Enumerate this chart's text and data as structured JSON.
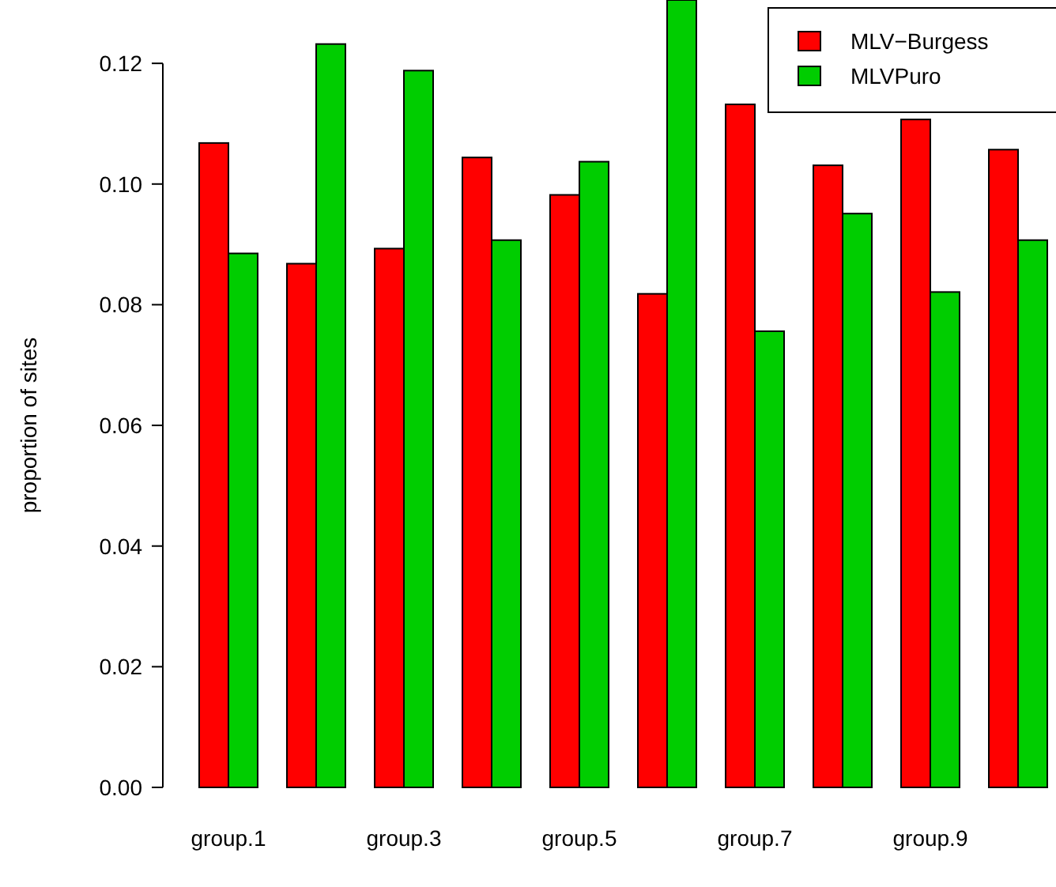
{
  "chart_data": {
    "type": "bar",
    "ylabel": "proportion of sites",
    "categories": [
      "group.1",
      null,
      "group.3",
      null,
      "group.5",
      null,
      "group.7",
      null,
      "group.9",
      null
    ],
    "series": [
      {
        "name": "MLV−Burgess",
        "color": "#ff0000",
        "values": [
          0.1068,
          0.0868,
          0.0893,
          0.1044,
          0.0982,
          0.0818,
          0.1132,
          0.1031,
          0.1107,
          0.1057
        ]
      },
      {
        "name": "MLVPuro",
        "color": "#00cd00",
        "values": [
          0.0885,
          0.1232,
          0.1188,
          0.0907,
          0.1037,
          0.1305,
          0.0756,
          0.0951,
          0.0821,
          0.0907
        ]
      }
    ],
    "ylim": [
      0,
      0.1305
    ],
    "yticks": [
      {
        "value": 0,
        "label": "0.00"
      },
      {
        "value": 0.02,
        "label": "0.02"
      },
      {
        "value": 0.04,
        "label": "0.04"
      },
      {
        "value": 0.06,
        "label": "0.06"
      },
      {
        "value": 0.08,
        "label": "0.08"
      },
      {
        "value": 0.1,
        "label": "0.10"
      },
      {
        "value": 0.12,
        "label": "0.12"
      }
    ],
    "legend": "top right",
    "grid": false
  }
}
